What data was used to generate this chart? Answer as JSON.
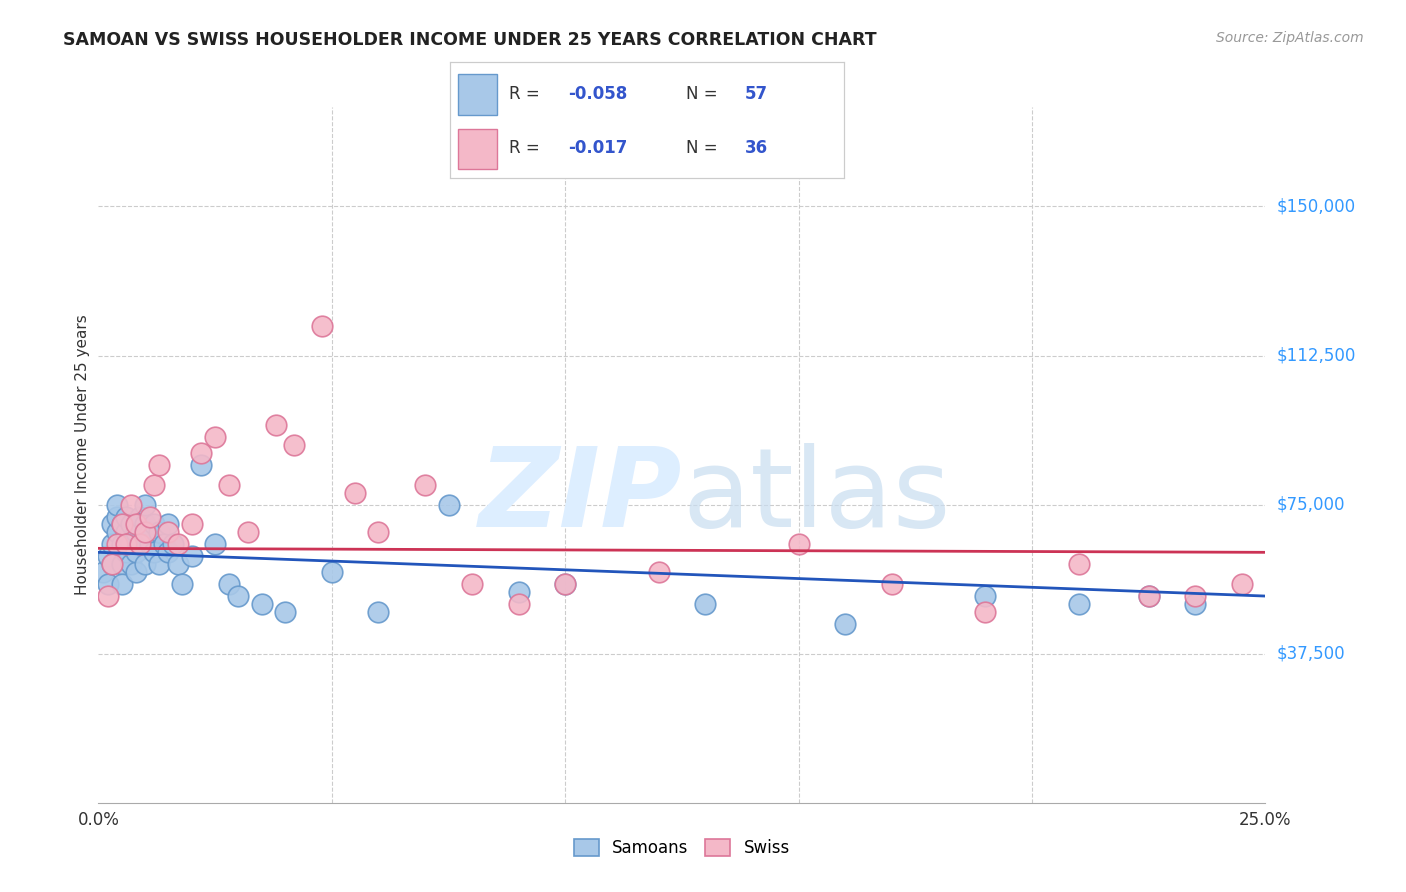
{
  "title": "SAMOAN VS SWISS HOUSEHOLDER INCOME UNDER 25 YEARS CORRELATION CHART",
  "source": "Source: ZipAtlas.com",
  "ylabel": "Householder Income Under 25 years",
  "xlim": [
    0.0,
    0.25
  ],
  "ylim": [
    0,
    175000
  ],
  "yticks": [
    37500,
    75000,
    112500,
    150000
  ],
  "ytick_labels": [
    "$37,500",
    "$75,000",
    "$112,500",
    "$150,000"
  ],
  "xticks": [
    0.0,
    0.05,
    0.1,
    0.15,
    0.2,
    0.25
  ],
  "xtick_labels": [
    "0.0%",
    "",
    "",
    "",
    "",
    "25.0%"
  ],
  "background_color": "#ffffff",
  "grid_color": "#cccccc",
  "samoans_color": "#a8c8e8",
  "swiss_color": "#f4b8c8",
  "samoans_edge": "#6699cc",
  "swiss_edge": "#dd7799",
  "trend_samoan_color": "#2255bb",
  "trend_swiss_color": "#cc3355",
  "watermark_color": "#ddeeff",
  "samoans_x": [
    0.001,
    0.002,
    0.002,
    0.003,
    0.003,
    0.003,
    0.004,
    0.004,
    0.004,
    0.005,
    0.005,
    0.005,
    0.005,
    0.006,
    0.006,
    0.006,
    0.007,
    0.007,
    0.007,
    0.008,
    0.008,
    0.008,
    0.009,
    0.009,
    0.01,
    0.01,
    0.01,
    0.011,
    0.011,
    0.012,
    0.012,
    0.013,
    0.013,
    0.014,
    0.015,
    0.015,
    0.016,
    0.017,
    0.018,
    0.02,
    0.022,
    0.025,
    0.028,
    0.03,
    0.035,
    0.04,
    0.05,
    0.06,
    0.075,
    0.09,
    0.1,
    0.13,
    0.16,
    0.19,
    0.21,
    0.225,
    0.235
  ],
  "samoans_y": [
    58000,
    62000,
    55000,
    70000,
    65000,
    60000,
    68000,
    72000,
    75000,
    60000,
    65000,
    70000,
    55000,
    63000,
    68000,
    72000,
    60000,
    65000,
    70000,
    58000,
    63000,
    68000,
    72000,
    65000,
    70000,
    75000,
    60000,
    65000,
    68000,
    63000,
    70000,
    68000,
    60000,
    65000,
    70000,
    63000,
    65000,
    60000,
    55000,
    62000,
    85000,
    65000,
    55000,
    52000,
    50000,
    48000,
    58000,
    48000,
    75000,
    53000,
    55000,
    50000,
    45000,
    52000,
    50000,
    52000,
    50000
  ],
  "swiss_x": [
    0.002,
    0.003,
    0.004,
    0.005,
    0.006,
    0.007,
    0.008,
    0.009,
    0.01,
    0.011,
    0.012,
    0.013,
    0.015,
    0.017,
    0.02,
    0.022,
    0.025,
    0.028,
    0.032,
    0.038,
    0.042,
    0.048,
    0.055,
    0.06,
    0.07,
    0.08,
    0.09,
    0.1,
    0.12,
    0.15,
    0.17,
    0.19,
    0.21,
    0.225,
    0.235,
    0.245
  ],
  "swiss_y": [
    52000,
    60000,
    65000,
    70000,
    65000,
    75000,
    70000,
    65000,
    68000,
    72000,
    80000,
    85000,
    68000,
    65000,
    70000,
    88000,
    92000,
    80000,
    68000,
    95000,
    90000,
    120000,
    78000,
    68000,
    80000,
    55000,
    50000,
    55000,
    58000,
    65000,
    55000,
    48000,
    60000,
    52000,
    52000,
    55000
  ]
}
